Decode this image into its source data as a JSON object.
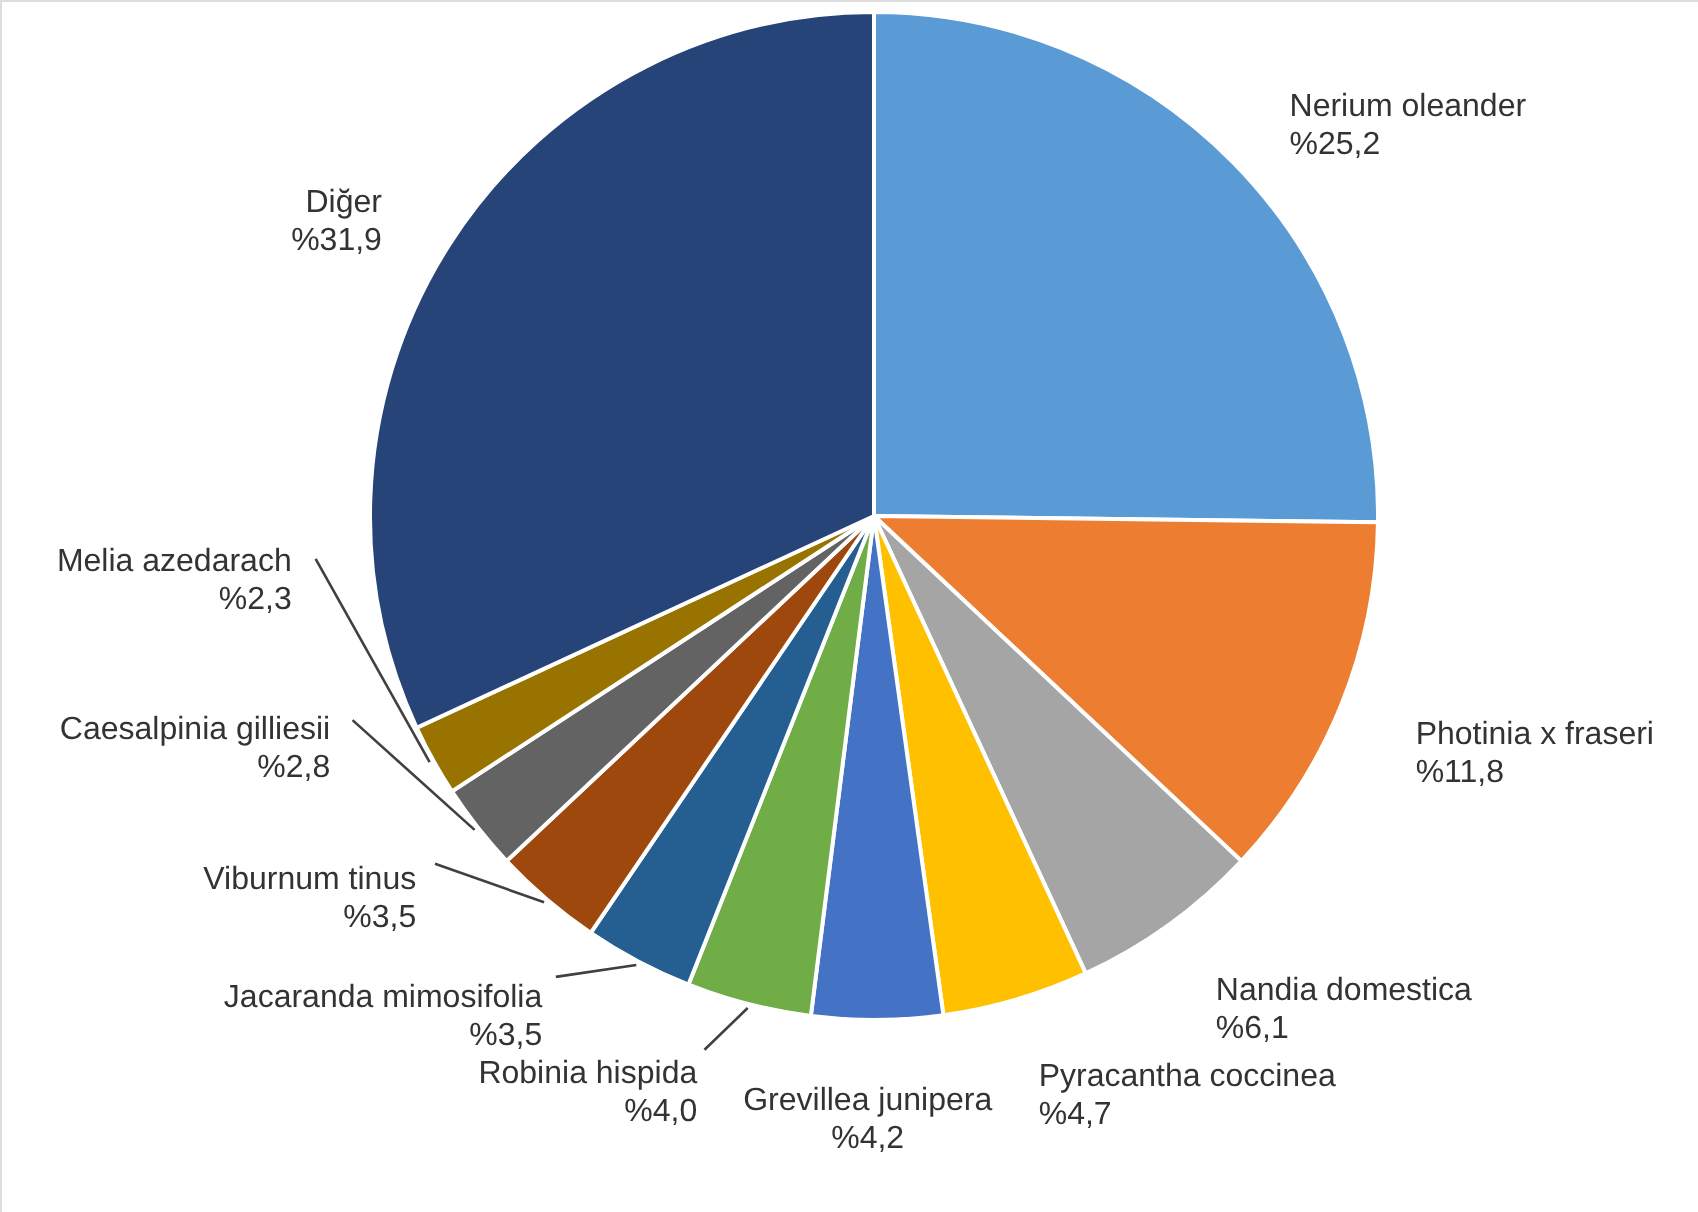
{
  "chart_data": {
    "type": "pie",
    "categories": [
      "Nerium oleander",
      "Photinia x fraseri",
      "Nandia domestica",
      "Pyracantha coccinea",
      "Grevillea junipera",
      "Robinia hispida",
      "Jacaranda mimosifolia",
      "Viburnum tinus",
      "Caesalpinia gilliesii",
      "Melia azedarach",
      "Diğer"
    ],
    "values": [
      25.2,
      11.8,
      6.1,
      4.7,
      4.2,
      4.0,
      3.5,
      3.5,
      2.8,
      2.3,
      31.9
    ],
    "value_labels": [
      "%25,2",
      "%11,8",
      "%6,1",
      "%4,7",
      "%4,2",
      "%4,0",
      "%3,5",
      "%3,5",
      "%2,8",
      "%2,3",
      "%31,9"
    ],
    "colors": [
      "#5b9bd5",
      "#ed7d31",
      "#a5a5a5",
      "#ffc000",
      "#4472c4",
      "#70ad47",
      "#255e91",
      "#9e480e",
      "#636363",
      "#997300",
      "#264478"
    ]
  }
}
